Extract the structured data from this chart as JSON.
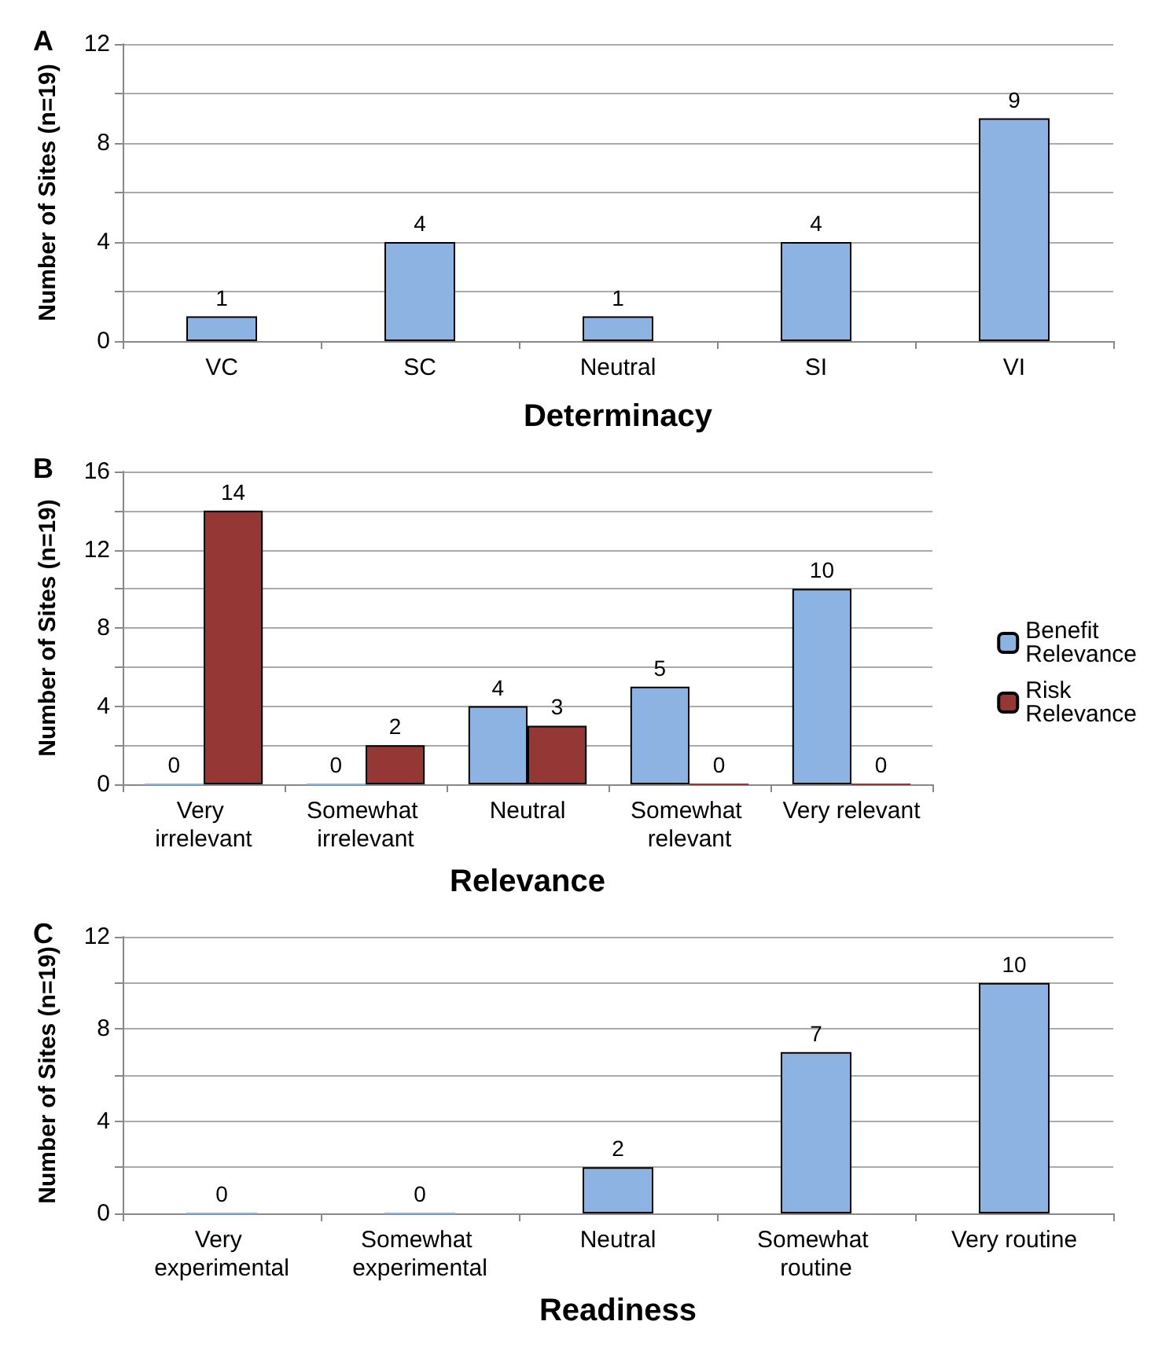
{
  "chart_data": [
    {
      "type": "bar",
      "title": "A",
      "xlabel": "Determinacy",
      "ylabel": "Number of Sites (n=19)",
      "categories": [
        "VC",
        "SC",
        "Neutral",
        "SI",
        "VI"
      ],
      "series": [
        {
          "color": "#8db3e2",
          "values": [
            1,
            4,
            1,
            4,
            9
          ]
        }
      ],
      "ylim": [
        0,
        12
      ],
      "yticks": [
        0,
        {
          "value": 2,
          "label": null
        },
        4,
        {
          "value": 6,
          "label": null
        },
        8,
        {
          "value": 10,
          "label": null
        },
        12
      ],
      "grid": "y",
      "data_labels": true,
      "legend": false
    },
    {
      "type": "bar",
      "title": "B",
      "xlabel": "Relevance",
      "ylabel": "Number of Sites (n=19)",
      "categories": [
        "Very irrelevant",
        "Somewhat irrelevant",
        "Neutral",
        "Somewhat relevant",
        "Very relevant"
      ],
      "series": [
        {
          "name": "Benefit Relevance",
          "color": "#8db3e2",
          "values": [
            0,
            0,
            4,
            5,
            10
          ]
        },
        {
          "name": "Risk Relevance",
          "color": "#953735",
          "values": [
            14,
            2,
            3,
            0,
            0
          ]
        }
      ],
      "ylim": [
        0,
        16
      ],
      "yticks": [
        0,
        {
          "value": 2,
          "label": null
        },
        4,
        {
          "value": 6,
          "label": null
        },
        8,
        {
          "value": 10,
          "label": null
        },
        12,
        {
          "value": 14,
          "label": null
        },
        16
      ],
      "grid": "y",
      "data_labels": true,
      "legend": "right"
    },
    {
      "type": "bar",
      "title": "C",
      "xlabel": "Readiness",
      "ylabel": "Number of Sites (n=19)",
      "categories": [
        "Very experimental",
        "Somewhat experimental",
        "Neutral",
        "Somewhat routine",
        "Very routine"
      ],
      "series": [
        {
          "color": "#8db3e2",
          "values": [
            0,
            0,
            2,
            7,
            10
          ]
        }
      ],
      "ylim": [
        0,
        12
      ],
      "yticks": [
        0,
        {
          "value": 2,
          "label": null
        },
        4,
        {
          "value": 6,
          "label": null
        },
        8,
        {
          "value": 10,
          "label": null
        },
        12
      ],
      "grid": "y",
      "data_labels": true,
      "legend": false
    }
  ]
}
